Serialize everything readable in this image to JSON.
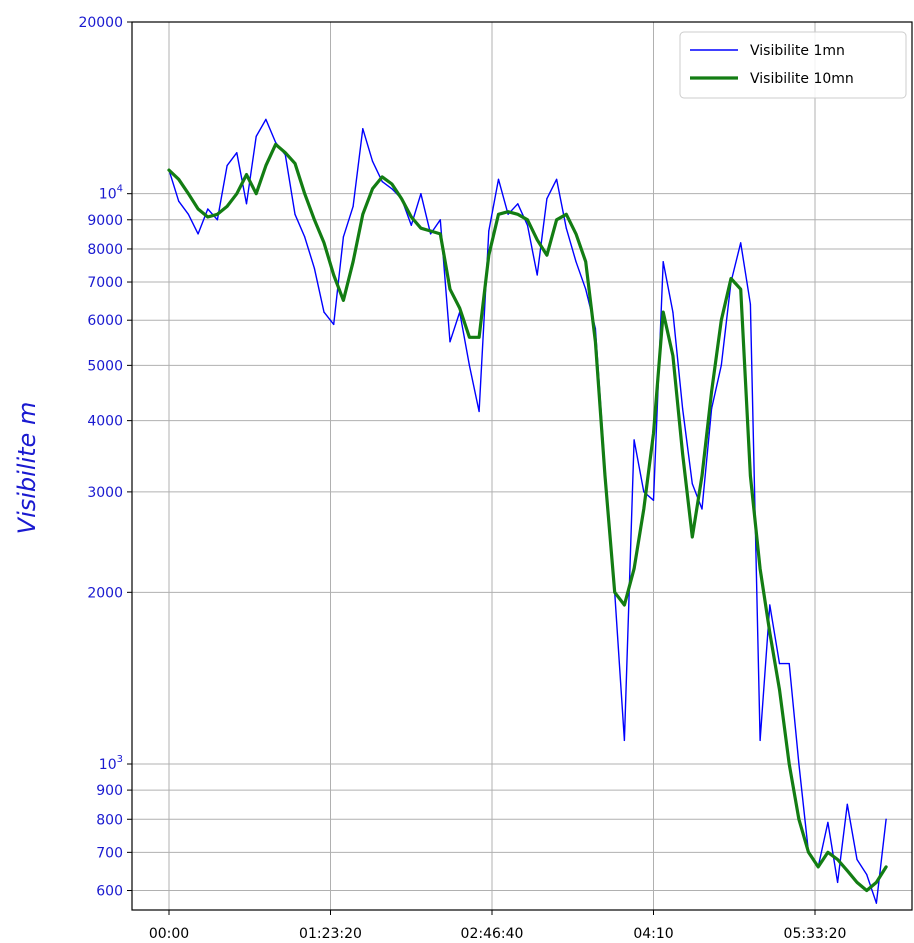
{
  "chart_data": {
    "type": "line",
    "ylabel": "Visibilite  m",
    "xlabel": "",
    "yscale": "log",
    "ylim": [
      550,
      20000
    ],
    "xlim": [
      "-00:10",
      "06:20"
    ],
    "grid": true,
    "legend_position": "top-right",
    "y_ticks": [
      {
        "value": 20000,
        "label": "20000"
      },
      {
        "value": 10000,
        "label": "10",
        "sup": "4"
      },
      {
        "value": 9000,
        "label": "9000"
      },
      {
        "value": 8000,
        "label": "8000"
      },
      {
        "value": 7000,
        "label": "7000"
      },
      {
        "value": 6000,
        "label": "6000"
      },
      {
        "value": 5000,
        "label": "5000"
      },
      {
        "value": 4000,
        "label": "4000"
      },
      {
        "value": 3000,
        "label": "3000"
      },
      {
        "value": 2000,
        "label": "2000"
      },
      {
        "value": 1000,
        "label": "10",
        "sup": "3"
      },
      {
        "value": 900,
        "label": "900"
      },
      {
        "value": 800,
        "label": "800"
      },
      {
        "value": 700,
        "label": "700"
      },
      {
        "value": 600,
        "label": "600"
      }
    ],
    "x_ticks": [
      "00:00",
      "01:23:20",
      "02:46:40",
      "04:10",
      "05:33:20"
    ],
    "series": [
      {
        "name": "Visibilite 1mn",
        "color": "#0000ff",
        "x": [
          "00:00",
          "00:05",
          "00:10",
          "00:15",
          "00:20",
          "00:25",
          "00:30",
          "00:35",
          "00:40",
          "00:45",
          "00:50",
          "00:55",
          "01:00",
          "01:05",
          "01:10",
          "01:15",
          "01:20",
          "01:25",
          "01:30",
          "01:35",
          "01:40",
          "01:45",
          "01:50",
          "01:55",
          "02:00",
          "02:05",
          "02:10",
          "02:15",
          "02:20",
          "02:25",
          "02:30",
          "02:35",
          "02:40",
          "02:45",
          "02:50",
          "02:55",
          "03:00",
          "03:05",
          "03:10",
          "03:15",
          "03:20",
          "03:25",
          "03:30",
          "03:35",
          "03:40",
          "03:45",
          "03:50",
          "03:55",
          "04:00",
          "04:05",
          "04:10",
          "04:15",
          "04:20",
          "04:25",
          "04:30",
          "04:35",
          "04:40",
          "04:45",
          "04:50",
          "04:55",
          "05:00",
          "05:05",
          "05:10",
          "05:15",
          "05:20",
          "05:25",
          "05:30",
          "05:35",
          "05:40",
          "05:45",
          "05:50",
          "05:55",
          "06:00",
          "06:05",
          "06:10"
        ],
        "y": [
          11000,
          9700,
          9200,
          8500,
          9400,
          9000,
          11200,
          11800,
          9600,
          12600,
          13500,
          12300,
          11700,
          9200,
          8400,
          7400,
          6200,
          5900,
          8400,
          9500,
          13000,
          11400,
          10500,
          10200,
          9800,
          8800,
          10000,
          8500,
          9000,
          5500,
          6200,
          5000,
          4150,
          8600,
          10600,
          9200,
          9600,
          8800,
          7200,
          9800,
          10600,
          8700,
          7600,
          6800,
          5800,
          3300,
          2000,
          1100,
          3700,
          3000,
          2900,
          7600,
          6200,
          4200,
          3100,
          2800,
          4200,
          5000,
          7000,
          8200,
          6400,
          1100,
          1900,
          1500,
          1500,
          1000,
          700,
          660,
          790,
          620,
          850,
          680,
          640,
          570,
          800
        ]
      },
      {
        "name": "Visibilite 10mn",
        "color": "#137d13",
        "x": [
          "00:00",
          "00:05",
          "00:10",
          "00:15",
          "00:20",
          "00:25",
          "00:30",
          "00:35",
          "00:40",
          "00:45",
          "00:50",
          "00:55",
          "01:00",
          "01:05",
          "01:10",
          "01:15",
          "01:20",
          "01:25",
          "01:30",
          "01:35",
          "01:40",
          "01:45",
          "01:50",
          "01:55",
          "02:00",
          "02:05",
          "02:10",
          "02:15",
          "02:20",
          "02:25",
          "02:30",
          "02:35",
          "02:40",
          "02:45",
          "02:50",
          "02:55",
          "03:00",
          "03:05",
          "03:10",
          "03:15",
          "03:20",
          "03:25",
          "03:30",
          "03:35",
          "03:40",
          "03:45",
          "03:50",
          "03:55",
          "04:00",
          "04:05",
          "04:10",
          "04:15",
          "04:20",
          "04:25",
          "04:30",
          "04:35",
          "04:40",
          "04:45",
          "04:50",
          "04:55",
          "05:00",
          "05:05",
          "05:10",
          "05:15",
          "05:20",
          "05:25",
          "05:30",
          "05:35",
          "05:40",
          "05:45",
          "05:50",
          "05:55",
          "06:00",
          "06:05",
          "06:10"
        ],
        "y": [
          11000,
          10600,
          10000,
          9400,
          9100,
          9200,
          9500,
          10000,
          10800,
          10000,
          11200,
          12200,
          11800,
          11300,
          10000,
          9000,
          8200,
          7200,
          6500,
          7600,
          9200,
          10200,
          10700,
          10400,
          9800,
          9100,
          8700,
          8600,
          8500,
          6800,
          6300,
          5600,
          5600,
          7800,
          9200,
          9300,
          9200,
          9000,
          8300,
          7800,
          9000,
          9200,
          8500,
          7600,
          5500,
          3200,
          2000,
          1900,
          2200,
          2800,
          3800,
          6200,
          5200,
          3500,
          2500,
          3200,
          4500,
          6000,
          7100,
          6800,
          3200,
          2200,
          1700,
          1350,
          1000,
          800,
          700,
          660,
          700,
          680,
          650,
          620,
          600,
          620,
          660
        ]
      }
    ]
  }
}
